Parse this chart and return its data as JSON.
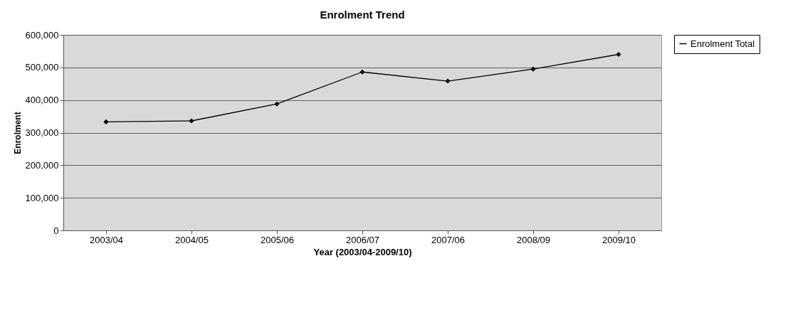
{
  "chart_data": {
    "type": "line",
    "title": "Enrolment Trend",
    "xlabel": "Year (2003/04-2009/10)",
    "ylabel": "Enrolment",
    "categories": [
      "2003/04",
      "2004/05",
      "2005/06",
      "2006/07",
      "2007/06",
      "2008/09",
      "2009/10"
    ],
    "series": [
      {
        "name": "Enrolment Total",
        "color": "#000000",
        "values": [
          333000,
          336000,
          388000,
          486000,
          458000,
          495000,
          540000
        ]
      }
    ],
    "ylim": [
      0,
      600000
    ],
    "yticks": [
      {
        "value": 0,
        "label": "0"
      },
      {
        "value": 100000,
        "label": "100,000"
      },
      {
        "value": 200000,
        "label": "200,000"
      },
      {
        "value": 300000,
        "label": "300,000"
      },
      {
        "value": 400000,
        "label": "400,000"
      },
      {
        "value": 500000,
        "label": "500,000"
      },
      {
        "value": 600000,
        "label": "600,000"
      }
    ],
    "grid": "y",
    "legend": "right",
    "marker": "diamond",
    "line_style": "solid"
  }
}
